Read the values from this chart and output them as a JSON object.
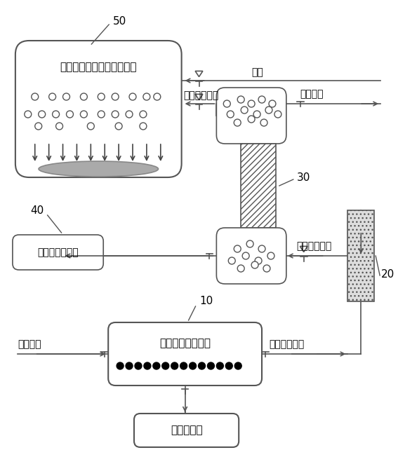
{
  "bg_color": "#ffffff",
  "line_color": "#555555",
  "box_fill": "#ffffff",
  "hatch_color": "#555555",
  "label_50": "50",
  "label_40": "40",
  "label_30": "30",
  "label_20": "20",
  "label_10": "10",
  "text_box50": "等离子体增强化学气相沉积",
  "text_box40": "气体纯度分析仪",
  "text_box10": "金属颗粒或粉状物",
  "text_vacuum": "抽真空设备",
  "text_hydrogen": "氢气",
  "text_halide_upper": "卤化金属气体",
  "text_impurity": "杂质气体",
  "text_halide_mid": "卤化金属气体",
  "text_halide_lower": "卤化金属气体",
  "text_halogen": "卤族气体",
  "font_size_label": 10,
  "font_size_chinese": 11,
  "font_size_small_chinese": 10
}
